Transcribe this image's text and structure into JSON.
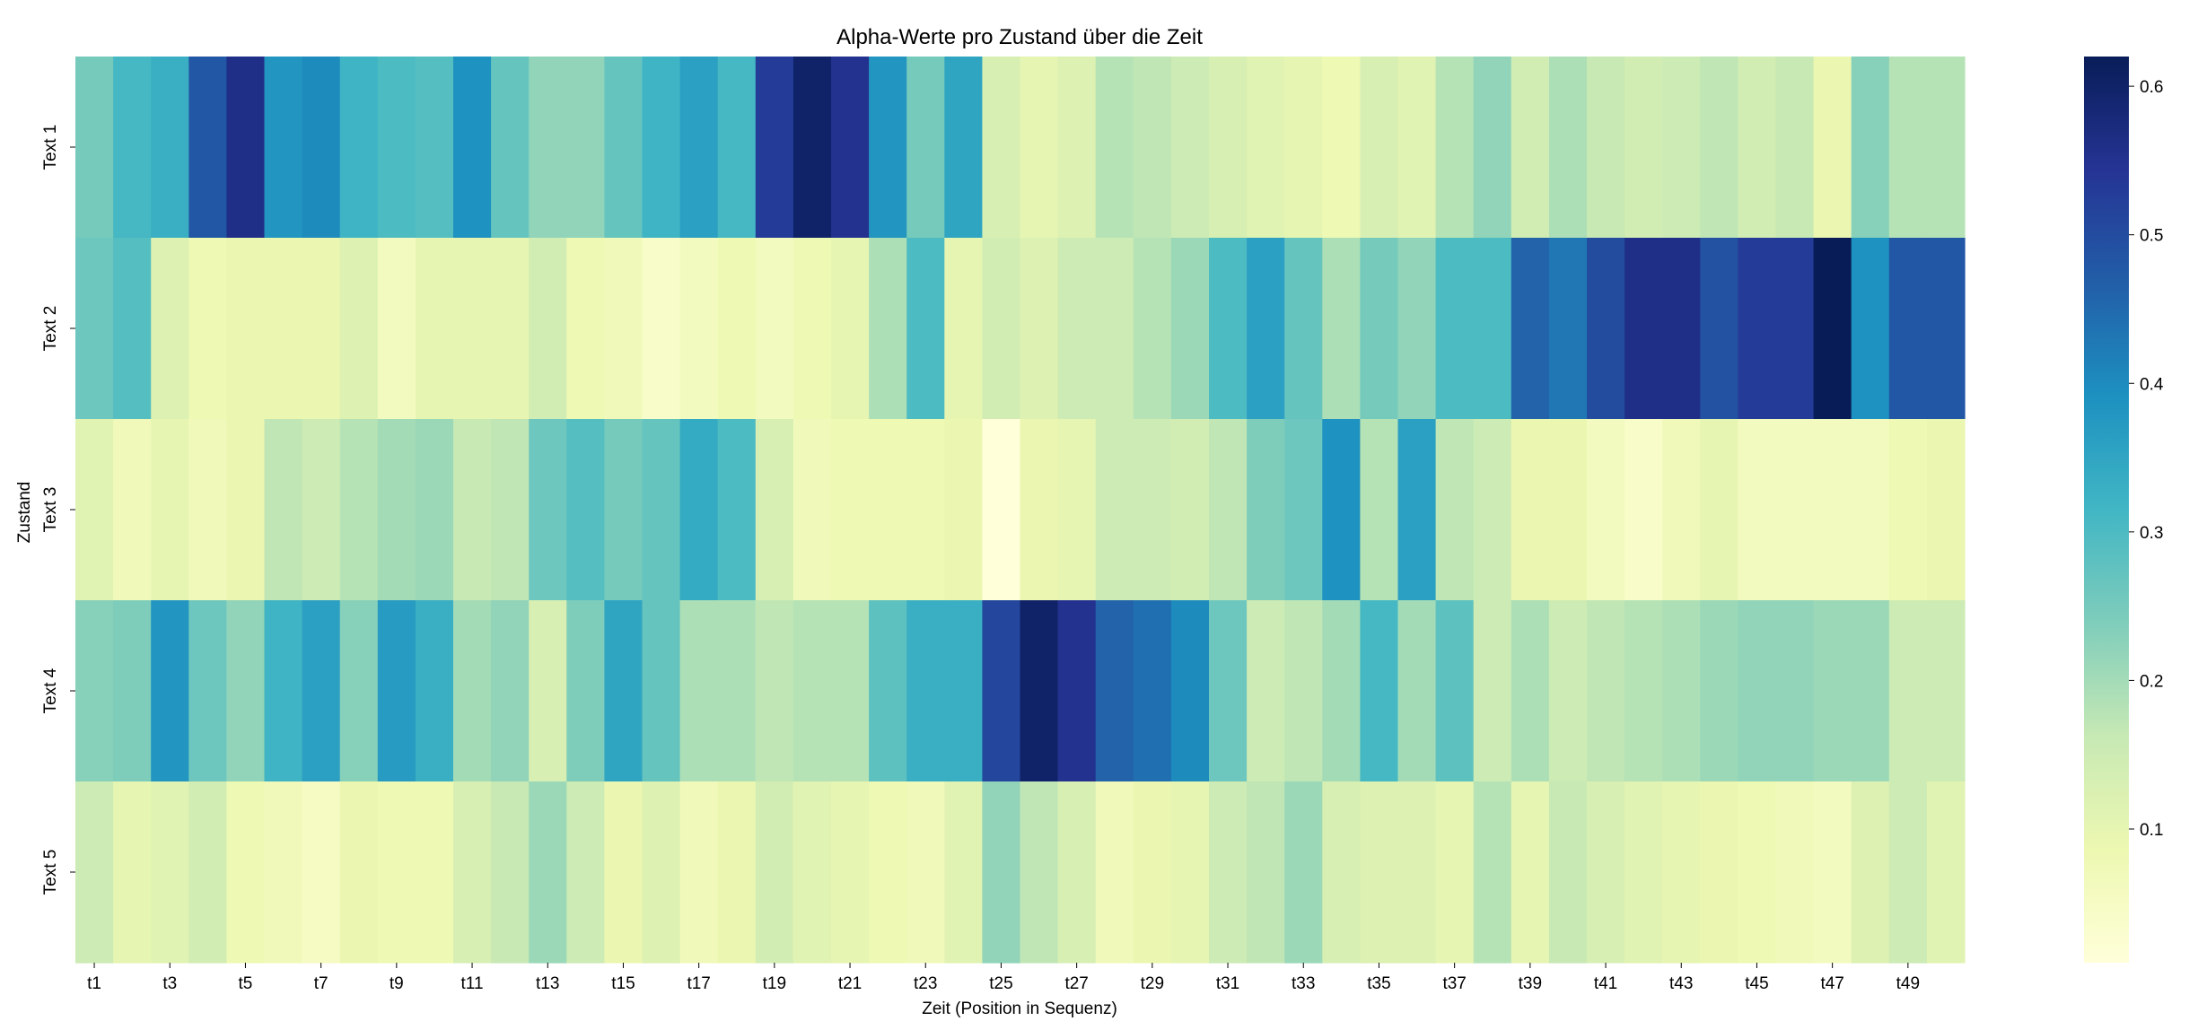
{
  "chart_data": {
    "type": "heatmap",
    "title": "Alpha-Werte pro Zustand über die Zeit",
    "xlabel": "Zeit (Position in Sequenz)",
    "ylabel": "Zustand",
    "colormap": "YlGnBu",
    "vmin": 0.01,
    "vmax": 0.62,
    "colorbar_ticks": [
      0.1,
      0.2,
      0.3,
      0.4,
      0.5,
      0.6
    ],
    "x": [
      "t1",
      "t2",
      "t3",
      "t4",
      "t5",
      "t6",
      "t7",
      "t8",
      "t9",
      "t10",
      "t11",
      "t12",
      "t13",
      "t14",
      "t15",
      "t16",
      "t17",
      "t18",
      "t19",
      "t20",
      "t21",
      "t22",
      "t23",
      "t24",
      "t25",
      "t26",
      "t27",
      "t28",
      "t29",
      "t30",
      "t31",
      "t32",
      "t33",
      "t34",
      "t35",
      "t36",
      "t37",
      "t38",
      "t39",
      "t40",
      "t41",
      "t42",
      "t43",
      "t44",
      "t45",
      "t46",
      "t47",
      "t48",
      "t49",
      "t50"
    ],
    "x_tick_labels": [
      "t1",
      "t3",
      "t5",
      "t7",
      "t9",
      "t11",
      "t13",
      "t15",
      "t17",
      "t19",
      "t21",
      "t23",
      "t25",
      "t27",
      "t29",
      "t31",
      "t33",
      "t35",
      "t37",
      "t39",
      "t41",
      "t43",
      "t45",
      "t47",
      "t49"
    ],
    "y": [
      "Text 1",
      "Text 2",
      "Text 3",
      "Text 4",
      "Text 5"
    ],
    "values": [
      [
        0.25,
        0.31,
        0.33,
        0.48,
        0.56,
        0.38,
        0.4,
        0.32,
        0.3,
        0.29,
        0.39,
        0.27,
        0.22,
        0.22,
        0.27,
        0.32,
        0.36,
        0.31,
        0.53,
        0.6,
        0.55,
        0.38,
        0.25,
        0.35,
        0.13,
        0.1,
        0.12,
        0.18,
        0.17,
        0.15,
        0.13,
        0.11,
        0.1,
        0.08,
        0.13,
        0.11,
        0.18,
        0.22,
        0.14,
        0.19,
        0.16,
        0.14,
        0.15,
        0.17,
        0.14,
        0.16,
        0.09,
        0.23,
        0.18,
        0.18
      ],
      [
        0.26,
        0.29,
        0.12,
        0.08,
        0.09,
        0.09,
        0.09,
        0.12,
        0.06,
        0.1,
        0.1,
        0.1,
        0.14,
        0.08,
        0.07,
        0.04,
        0.06,
        0.08,
        0.06,
        0.08,
        0.1,
        0.19,
        0.3,
        0.1,
        0.14,
        0.12,
        0.15,
        0.15,
        0.18,
        0.21,
        0.3,
        0.36,
        0.27,
        0.19,
        0.25,
        0.22,
        0.3,
        0.3,
        0.46,
        0.43,
        0.5,
        0.56,
        0.56,
        0.49,
        0.53,
        0.53,
        0.62,
        0.39,
        0.48,
        0.48
      ],
      [
        0.11,
        0.07,
        0.1,
        0.07,
        0.09,
        0.17,
        0.15,
        0.18,
        0.2,
        0.21,
        0.16,
        0.17,
        0.26,
        0.29,
        0.25,
        0.27,
        0.34,
        0.3,
        0.13,
        0.07,
        0.08,
        0.08,
        0.08,
        0.09,
        0.01,
        0.09,
        0.1,
        0.15,
        0.15,
        0.14,
        0.17,
        0.24,
        0.26,
        0.39,
        0.18,
        0.36,
        0.17,
        0.15,
        0.09,
        0.09,
        0.06,
        0.04,
        0.07,
        0.1,
        0.06,
        0.06,
        0.06,
        0.06,
        0.08,
        0.09
      ],
      [
        0.23,
        0.24,
        0.38,
        0.26,
        0.22,
        0.32,
        0.36,
        0.23,
        0.37,
        0.33,
        0.2,
        0.22,
        0.13,
        0.24,
        0.35,
        0.27,
        0.19,
        0.19,
        0.17,
        0.18,
        0.18,
        0.28,
        0.33,
        0.33,
        0.51,
        0.6,
        0.55,
        0.46,
        0.44,
        0.4,
        0.26,
        0.15,
        0.17,
        0.2,
        0.31,
        0.2,
        0.28,
        0.15,
        0.19,
        0.15,
        0.17,
        0.18,
        0.19,
        0.21,
        0.22,
        0.22,
        0.21,
        0.21,
        0.15,
        0.15
      ],
      [
        0.15,
        0.1,
        0.11,
        0.14,
        0.08,
        0.07,
        0.05,
        0.09,
        0.08,
        0.08,
        0.13,
        0.16,
        0.21,
        0.15,
        0.09,
        0.12,
        0.07,
        0.09,
        0.14,
        0.11,
        0.1,
        0.08,
        0.07,
        0.11,
        0.22,
        0.17,
        0.13,
        0.07,
        0.09,
        0.1,
        0.15,
        0.17,
        0.21,
        0.13,
        0.12,
        0.12,
        0.1,
        0.18,
        0.1,
        0.16,
        0.13,
        0.11,
        0.1,
        0.09,
        0.08,
        0.07,
        0.06,
        0.12,
        0.15,
        0.11
      ]
    ]
  }
}
